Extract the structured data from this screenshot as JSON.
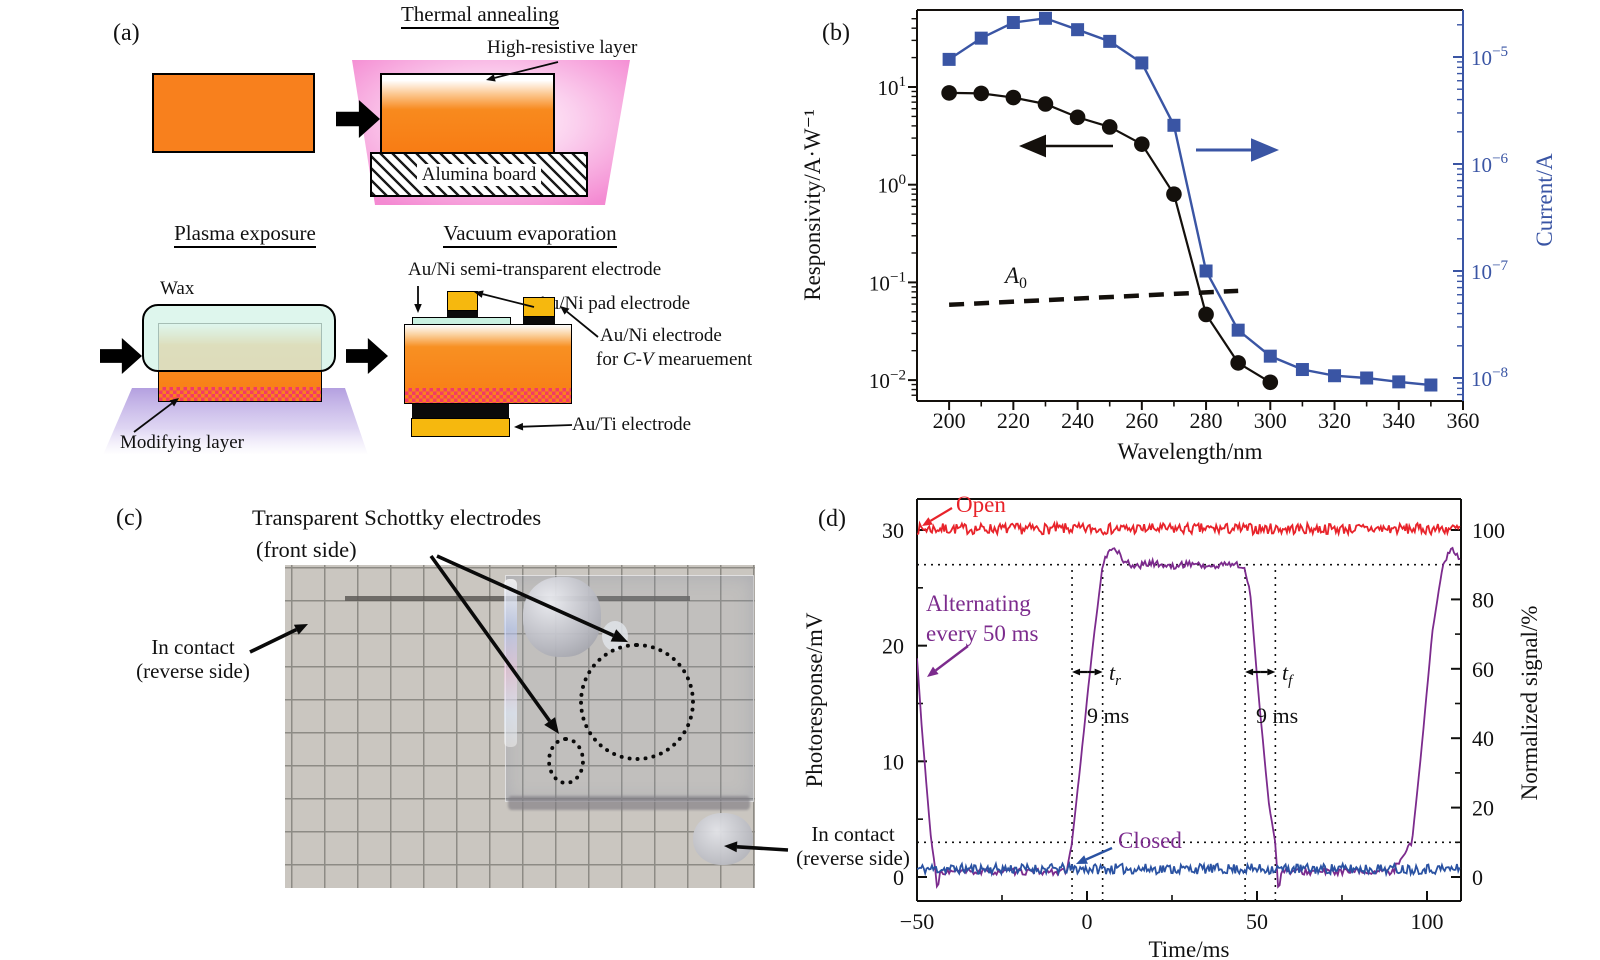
{
  "colors": {
    "orange": "#f8801d",
    "gold": "#f6b80e",
    "wax_mint": "#d5f4e8",
    "pink_glow": "#f48ad2",
    "purple_glow": "#b4a0e0",
    "checker_red": "#f23a66",
    "responsivity_black": "#14100c",
    "current_blue": "#3a55a4",
    "open_red": "#e8232a",
    "closed_blue": "#2a52a2",
    "alternating_purple": "#7c2b8d"
  },
  "panel_a": {
    "label": "(a)",
    "thermal": {
      "title": "Thermal annealing",
      "callout": "High-resistive layer",
      "board": "Alumina board"
    },
    "plasma": {
      "title": "Plasma exposure",
      "wax": "Wax",
      "callout": "Modifying layer"
    },
    "vacuum": {
      "title": "Vacuum evaporation",
      "callout_top": "Au/Ni semi-transparent electrode",
      "callout_pad": "Au/Ni pad electrode",
      "callout_cv_1": "Au/Ni electrode",
      "callout_cv_2a": "for ",
      "callout_cv_2b": "C-V",
      "callout_cv_2c": " mearuement",
      "callout_bottom": "Au/Ti electrode"
    }
  },
  "panel_c": {
    "label": "(c)",
    "title": "Transparent Schottky electrodes",
    "subtitle": "(front side)",
    "contact_left_line1": "In contact",
    "contact_left_line2": "(reverse side)",
    "contact_right_line1": "In contact",
    "contact_right_line2": "(reverse side)"
  },
  "chart_data": [
    {
      "panel_label": "(b)",
      "type": "line",
      "xlabel": "Wavelength/nm",
      "ylabel_left": "Responsivity/A·W⁻¹",
      "ylabel_right": "Current/A",
      "xlim": [
        190,
        360
      ],
      "x_ticks": [
        200,
        220,
        240,
        260,
        280,
        300,
        320,
        340,
        360
      ],
      "x_minor_ticks": [
        210,
        230,
        250,
        270,
        290,
        310,
        330,
        350
      ],
      "left_axis": {
        "scale": "log",
        "tick_exponents": [
          1,
          0,
          -1,
          -2
        ]
      },
      "right_axis": {
        "scale": "log",
        "tick_exponents": [
          -5,
          -6,
          -7,
          -8
        ]
      },
      "grid": false,
      "series": [
        {
          "name": "responsivity",
          "axis": "left",
          "marker": "circle",
          "x": [
            200,
            210,
            220,
            230,
            240,
            250,
            260,
            270,
            280,
            290,
            300
          ],
          "y": [
            8.7,
            8.6,
            7.8,
            6.7,
            4.9,
            3.9,
            2.6,
            0.8,
            0.047,
            0.015,
            0.0095
          ]
        },
        {
          "name": "current",
          "axis": "right",
          "marker": "square",
          "x": [
            200,
            210,
            220,
            230,
            240,
            250,
            260,
            270,
            280,
            290,
            300,
            310,
            320,
            330,
            340,
            350
          ],
          "y": [
            9.5e-06,
            1.5e-05,
            2.1e-05,
            2.3e-05,
            1.8e-05,
            1.4e-05,
            8.8e-06,
            2.3e-06,
            1e-07,
            2.8e-08,
            1.6e-08,
            1.2e-08,
            1.05e-08,
            1e-08,
            9.2e-09,
            8.6e-09
          ]
        },
        {
          "name": "A0_reference",
          "axis": "left",
          "style": "dashed",
          "symbol": "A",
          "subscript": "0",
          "x": [
            200,
            290
          ],
          "y": [
            0.059,
            0.082
          ]
        }
      ]
    },
    {
      "panel_label": "(d)",
      "type": "line",
      "xlabel": "Time/ms",
      "ylabel_left": "Photoresponse/mV",
      "ylabel_right": "Normalized signal/%",
      "xlim": [
        -50,
        110
      ],
      "x_ticks": [
        -50,
        0,
        50,
        100
      ],
      "x_minor_step": 25,
      "left_ticks": [
        0,
        10,
        20,
        30
      ],
      "right_ticks": [
        0,
        20,
        40,
        60,
        80,
        100
      ],
      "reference_lines_pct": [
        90,
        10
      ],
      "traces": [
        {
          "name": "open",
          "label": "Open",
          "level_mV": 30.1
        },
        {
          "name": "closed",
          "label": "Closed",
          "level_mV": 0.7
        },
        {
          "name": "alternating",
          "label_line1": "Alternating",
          "label_line2": "every 50 ms",
          "period_ms": 100,
          "keypoints_t_pct": [
            [
              -50,
              63
            ],
            [
              -48.5,
              42
            ],
            [
              -46,
              12
            ],
            [
              -44.6,
              2
            ],
            [
              -44,
              -4.5
            ],
            [
              -43.2,
              1.5
            ],
            [
              -6,
              1.5
            ],
            [
              -4.4,
              10
            ],
            [
              -2,
              32
            ],
            [
              1.5,
              65
            ],
            [
              4.6,
              90
            ],
            [
              6.5,
              93.5
            ],
            [
              8,
              94.5
            ],
            [
              10.5,
              91.5
            ],
            [
              14,
              90
            ],
            [
              44,
              89.8
            ],
            [
              46.3,
              89.3
            ],
            [
              48,
              82
            ],
            [
              50.5,
              52
            ],
            [
              53.5,
              21
            ],
            [
              55.4,
              10
            ],
            [
              56.3,
              -4.5
            ],
            [
              57.2,
              1.5
            ],
            [
              90,
              1.5
            ],
            [
              92.5,
              6
            ],
            [
              95.6,
              10
            ],
            [
              98.5,
              38
            ],
            [
              101.5,
              70
            ],
            [
              104.6,
              90
            ],
            [
              106.2,
              93.8
            ],
            [
              107.6,
              94.3
            ],
            [
              109,
              91.8
            ],
            [
              110,
              90.6
            ]
          ]
        }
      ],
      "rise_time": {
        "symbol": "t",
        "subscript": "r",
        "value": "9 ms",
        "t_start": -4.4,
        "t_end": 4.6
      },
      "fall_time": {
        "symbol": "t",
        "subscript": "f",
        "value": "9 ms",
        "t_start": 46.5,
        "t_end": 55.4
      }
    }
  ]
}
